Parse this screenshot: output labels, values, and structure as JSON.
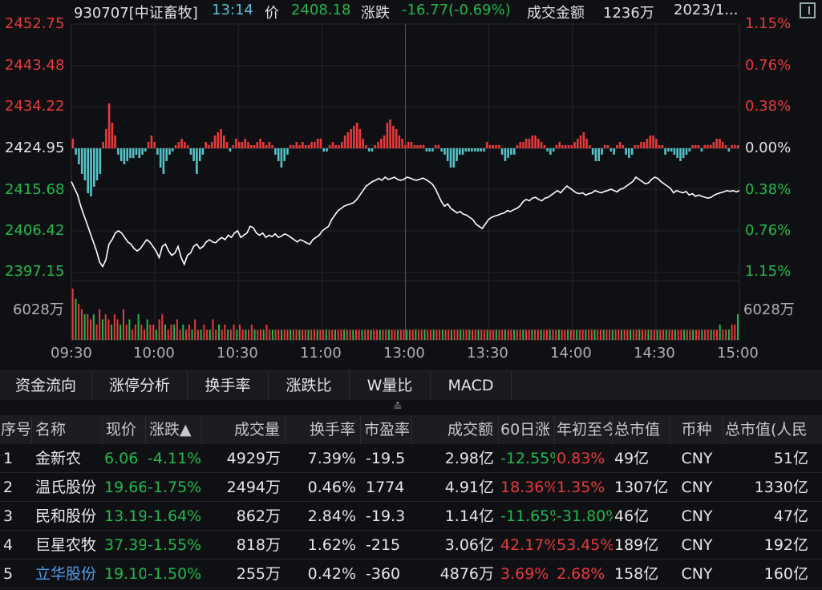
{
  "header": {
    "code_name": "930707[中证畜牧]",
    "time": "13:14",
    "price_label": "价",
    "price": "2408.18",
    "change_label": "涨跌",
    "change": "-16.77(-0.69%)",
    "turnover_label": "成交金额",
    "turnover": "1236万",
    "date": "2023/1..."
  },
  "price_axis_left": [
    "2452.75",
    "2443.48",
    "2434.22",
    "2424.95",
    "2415.68",
    "2406.42",
    "2397.15"
  ],
  "price_axis_right": [
    "1.15%",
    "0.76%",
    "0.38%",
    "0.00%",
    "0.38%",
    "0.76%",
    "1.15%"
  ],
  "volume_axis": {
    "left": "6028万",
    "right": "6028万"
  },
  "time_axis": [
    "09:30",
    "10:00",
    "10:30",
    "11:00",
    "13:00",
    "13:30",
    "14:00",
    "14:30",
    "15:00"
  ],
  "colors": {
    "up": "#e8393b",
    "down": "#22b94a",
    "flat": "#e0e0e0",
    "line": "#ffffff",
    "bar_down": "#54c4c8",
    "bg": "#0f1014"
  },
  "chart_data": {
    "type": "line",
    "title": "930707[中证畜牧] 分时",
    "base": 2424.95,
    "ylim": [
      2397.15,
      2452.75
    ],
    "price_series": [
      2417.5,
      2416,
      2414.5,
      2412,
      2410,
      2408,
      2406,
      2404,
      2402,
      2399.5,
      2398.5,
      2400,
      2403.5,
      2404.5,
      2406,
      2406.5,
      2406,
      2405,
      2404,
      2403.5,
      2402.5,
      2402,
      2402.5,
      2403.5,
      2404.5,
      2404,
      2403,
      2402,
      2400.5,
      2403,
      2403.5,
      2402,
      2401,
      2401.5,
      2403,
      2400.5,
      2399,
      2401,
      2401.5,
      2403,
      2403.5,
      2402.5,
      2403,
      2404,
      2404.5,
      2404,
      2403.8,
      2404.5,
      2405,
      2404.5,
      2405.5,
      2405,
      2406,
      2406.5,
      2405,
      2405.5,
      2406,
      2407.5,
      2407.2,
      2406,
      2405.5,
      2406,
      2405,
      2405.5,
      2405.2,
      2405.8,
      2405,
      2405.3,
      2405.8,
      2405.5,
      2405,
      2404.5,
      2404,
      2404.5,
      2404.2,
      2403.8,
      2403.5,
      2404.5,
      2405,
      2405.5,
      2406.5,
      2407,
      2407.5,
      2409,
      2410,
      2411,
      2411.5,
      2412,
      2412.3,
      2412.5,
      2412.8,
      2413.5,
      2414.5,
      2415.5,
      2416.5,
      2417,
      2417.5,
      2417.8,
      2418.2,
      2417.8,
      2418.5,
      2418,
      2418.2,
      2418.5,
      2418,
      2417.8,
      2418,
      2418.5,
      2418.3,
      2418,
      2417.8,
      2418,
      2418.3,
      2418,
      2417.5,
      2417,
      2416,
      2414.5,
      2413,
      2412,
      2412.5,
      2411.5,
      2411,
      2410.5,
      2410.8,
      2410.2,
      2410,
      2409.5,
      2409,
      2408,
      2407.5,
      2407,
      2408,
      2409,
      2409.5,
      2409.8,
      2410,
      2410.3,
      2410.5,
      2411,
      2410.8,
      2411.2,
      2411.5,
      2412,
      2413,
      2413.5,
      2413.2,
      2413.8,
      2414,
      2413.5,
      2413.2,
      2413.8,
      2414,
      2414.5,
      2415,
      2415.5,
      2415,
      2415.8,
      2416.5,
      2416,
      2415.5,
      2415,
      2414.8,
      2415,
      2414.5,
      2414.8,
      2415,
      2415.5,
      2415.2,
      2415,
      2415.3,
      2415.5,
      2415.8,
      2415.5,
      2415.2,
      2415.8,
      2416,
      2416.5,
      2417,
      2417.5,
      2418.5,
      2418,
      2417.5,
      2417,
      2417.2,
      2418,
      2418.5,
      2418.2,
      2417.5,
      2417,
      2416.5,
      2416,
      2415,
      2415.5,
      2415.2,
      2415,
      2415.3,
      2414.5,
      2414.8,
      2414.2,
      2414.5,
      2414.2,
      2414,
      2413.8,
      2414,
      2414.5,
      2414.8,
      2415,
      2415.2,
      2415.5,
      2415.3,
      2415.5,
      2415.2,
      2415.5
    ],
    "change_bars": [
      3,
      -2,
      -5,
      -8,
      -10,
      -14,
      -15,
      -12,
      -10,
      -8,
      2,
      6,
      14,
      8,
      4,
      -2,
      -4,
      -5,
      -4,
      -3,
      -3,
      -2,
      -3,
      -2,
      -1,
      2,
      4,
      2,
      -2,
      -6,
      -8,
      -4,
      -2,
      -1,
      1,
      2,
      3,
      2,
      1,
      -2,
      -4,
      -8,
      -4,
      -2,
      2,
      1,
      2,
      4,
      5,
      6,
      4,
      2,
      -1,
      1,
      3,
      2,
      2,
      3,
      2,
      1,
      1,
      2,
      3,
      2,
      1,
      2,
      1,
      -2,
      -4,
      -6,
      -4,
      -2,
      1,
      1,
      2,
      1,
      2,
      1,
      1,
      2,
      2,
      3,
      3,
      -1,
      -1,
      1,
      2,
      1,
      1,
      2,
      4,
      5,
      6,
      7,
      8,
      6,
      3,
      1,
      -1,
      -1,
      1,
      2,
      3,
      4,
      8,
      9,
      7,
      6,
      4,
      3,
      1,
      2,
      2,
      1,
      1,
      1,
      1,
      -1,
      -1,
      -1,
      1,
      1,
      -1,
      -2,
      -4,
      -6,
      -6,
      -4,
      -2,
      -2,
      -1,
      -1,
      -1,
      -1,
      -1,
      -1,
      -1,
      2,
      1,
      1,
      1,
      1,
      -2,
      -4,
      -3,
      -2,
      -2,
      1,
      2,
      2,
      3,
      3,
      4,
      4,
      3,
      2,
      1,
      -1,
      -2,
      -1,
      1,
      2,
      1,
      1,
      1,
      1,
      2,
      3,
      4,
      5,
      3,
      1,
      -2,
      -4,
      -4,
      -2,
      1,
      1,
      -1,
      -2,
      1,
      2,
      1,
      -2,
      -3,
      -2,
      1,
      1,
      2,
      2,
      3,
      4,
      4,
      3,
      1,
      1,
      -2,
      -1,
      -1,
      -2,
      -3,
      -4,
      -3,
      -2,
      -1,
      1,
      1,
      1,
      -1,
      1,
      1,
      1,
      2,
      3,
      3,
      2,
      1,
      -1,
      1,
      1,
      1
    ],
    "volume_series": [
      10,
      8,
      7,
      6,
      5,
      5,
      4,
      5,
      3,
      6,
      4,
      5,
      4,
      3,
      5,
      4,
      3,
      6,
      3,
      4,
      2,
      3,
      5,
      3,
      2,
      4,
      3,
      3,
      2,
      4,
      5,
      3,
      2,
      3,
      3,
      4,
      2,
      3,
      2,
      3,
      2,
      4,
      2,
      2,
      3,
      2,
      2,
      4,
      2,
      3,
      2,
      3,
      2,
      2,
      3,
      2,
      3,
      2,
      2,
      2,
      3,
      2,
      2,
      2,
      2,
      3,
      2,
      2,
      2,
      2,
      2,
      2,
      2,
      2,
      2,
      2,
      2,
      2,
      2,
      2,
      2,
      2,
      2,
      2,
      2,
      2,
      2,
      2,
      2,
      2,
      2,
      2,
      2,
      2,
      2,
      2,
      2,
      2,
      2,
      2,
      2,
      2,
      2,
      2,
      2,
      2,
      2,
      2,
      2,
      2,
      2,
      2,
      2,
      2,
      2,
      2,
      2,
      2,
      2,
      2,
      2,
      2,
      2,
      2,
      2,
      2,
      2,
      2,
      2,
      2,
      2,
      2,
      2,
      2,
      2,
      2,
      2,
      2,
      2,
      2,
      2,
      2,
      2,
      2,
      2,
      2,
      2,
      2,
      2,
      2,
      2,
      2,
      2,
      2,
      2,
      2,
      2,
      2,
      2,
      2,
      2,
      2,
      2,
      2,
      2,
      2,
      2,
      2,
      2,
      2,
      2,
      2,
      2,
      2,
      2,
      2,
      2,
      2,
      2,
      2,
      2,
      2,
      2,
      2,
      2,
      2,
      2,
      2,
      2,
      2,
      2,
      2,
      2,
      2,
      2,
      2,
      2,
      2,
      2,
      2,
      2,
      2,
      2,
      2,
      2,
      2,
      2,
      2,
      2,
      2,
      2,
      2,
      2,
      2,
      2,
      2,
      2,
      3,
      2,
      2,
      2,
      3,
      3,
      5
    ]
  },
  "tabs": [
    "资金流向",
    "涨停分析",
    "换手率",
    "涨跌比",
    "W量比",
    "MACD"
  ],
  "expand_icon": "double-chevron-down",
  "table": {
    "columns": [
      "序号",
      "名称",
      "现价",
      "涨跌▲",
      "成交量",
      "换手率",
      "市盈率",
      "成交额",
      "60日涨",
      "年初至今",
      "总市值",
      "币种",
      "总市值(人民"
    ],
    "rows": [
      [
        "1",
        "金新农",
        "6.06",
        "-4.11%",
        "4929万",
        "7.39%",
        "-19.5",
        "2.98亿",
        "-12.55%",
        "0.83%",
        "49亿",
        "CNY",
        "51亿"
      ],
      [
        "2",
        "温氏股份",
        "19.66",
        "-1.75%",
        "2494万",
        "0.46%",
        "1774",
        "4.91亿",
        "18.36%",
        "1.35%",
        "1307亿",
        "CNY",
        "1330亿"
      ],
      [
        "3",
        "民和股份",
        "13.19",
        "-1.64%",
        "862万",
        "2.84%",
        "-19.3",
        "1.14亿",
        "-11.65%",
        "-31.80%",
        "46亿",
        "CNY",
        "47亿"
      ],
      [
        "4",
        "巨星农牧",
        "37.39",
        "-1.55%",
        "818万",
        "1.62%",
        "-215",
        "3.06亿",
        "42.17%",
        "53.45%",
        "189亿",
        "CNY",
        "192亿"
      ],
      [
        "5",
        "立华股份",
        "19.10",
        "-1.50%",
        "255万",
        "0.42%",
        "-360",
        "4876万",
        "3.69%",
        "2.68%",
        "158亿",
        "CNY",
        "160亿"
      ]
    ]
  }
}
